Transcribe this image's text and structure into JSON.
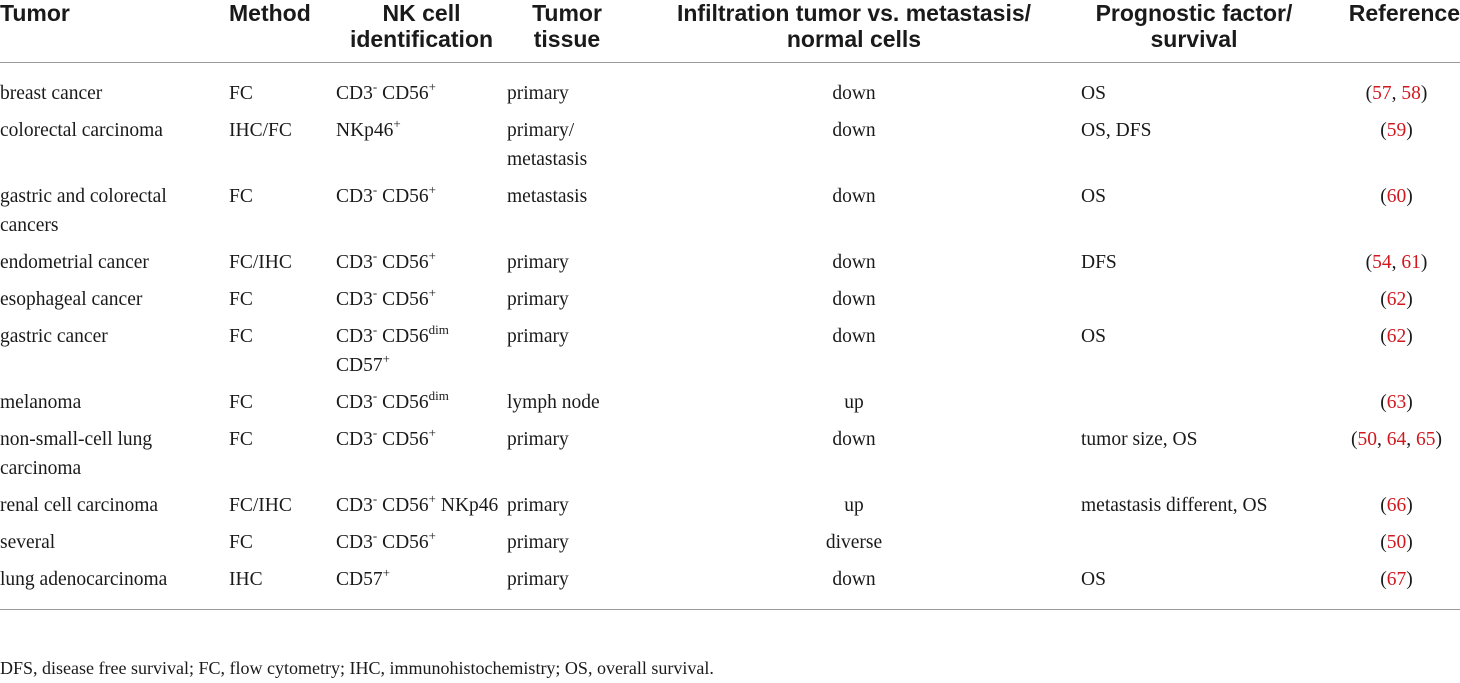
{
  "headers": {
    "tumor": "Tumor",
    "method": "Method",
    "nk_line1": "NK cell",
    "nk_line2": "identification",
    "tissue_line1": "Tumor",
    "tissue_line2": "tissue",
    "infil_line1": "Infiltration tumor vs. metastasis/",
    "infil_line2": "normal cells",
    "prog_line1": "Prognostic factor/",
    "prog_line2": "survival",
    "reference": "Reference"
  },
  "rows": [
    {
      "tumor": "breast cancer",
      "method": "FC",
      "nk": [
        {
          "t": "CD3"
        },
        {
          "s": "-"
        },
        {
          "t": " CD56"
        },
        {
          "s": "+"
        }
      ],
      "tissue": "primary",
      "infil": "down",
      "prog": "OS",
      "refs": [
        "57",
        "58"
      ]
    },
    {
      "tumor": "colorectal carcinoma",
      "method": "IHC/FC",
      "nk": [
        {
          "t": "NKp46"
        },
        {
          "s": "+"
        }
      ],
      "tissue": "primary/ metastasis",
      "infil": "down",
      "prog": "OS, DFS",
      "refs": [
        "59"
      ]
    },
    {
      "tumor": "gastric and colorectal cancers",
      "method": "FC",
      "nk": [
        {
          "t": "CD3"
        },
        {
          "s": "-"
        },
        {
          "t": " CD56"
        },
        {
          "s": "+"
        }
      ],
      "tissue": "metastasis",
      "infil": "down",
      "prog": "OS",
      "refs": [
        "60"
      ]
    },
    {
      "tumor": "endometrial cancer",
      "method": "FC/IHC",
      "nk": [
        {
          "t": "CD3"
        },
        {
          "s": "-"
        },
        {
          "t": " CD56"
        },
        {
          "s": "+"
        }
      ],
      "tissue": "primary",
      "infil": "down",
      "prog": "DFS",
      "refs": [
        "54",
        "61"
      ]
    },
    {
      "tumor": "esophageal cancer",
      "method": "FC",
      "nk": [
        {
          "t": "CD3"
        },
        {
          "s": "-"
        },
        {
          "t": " CD56"
        },
        {
          "s": "+"
        }
      ],
      "tissue": "primary",
      "infil": "down",
      "prog": "",
      "refs": [
        "62"
      ]
    },
    {
      "tumor": "gastric cancer",
      "method": "FC",
      "nk": [
        {
          "t": "CD3"
        },
        {
          "s": "-"
        },
        {
          "t": " CD56"
        },
        {
          "s": "dim"
        },
        {
          "t": " CD57"
        },
        {
          "s": "+"
        }
      ],
      "tissue": "primary",
      "infil": "down",
      "prog": "OS",
      "refs": [
        "62"
      ]
    },
    {
      "tumor": "melanoma",
      "method": "FC",
      "nk": [
        {
          "t": "CD3"
        },
        {
          "s": "-"
        },
        {
          "t": " CD56"
        },
        {
          "s": "dim"
        }
      ],
      "tissue": "lymph node",
      "infil": "up",
      "prog": "",
      "refs": [
        "63"
      ]
    },
    {
      "tumor": "non-small-cell lung carcinoma",
      "method": "FC",
      "nk": [
        {
          "t": "CD3"
        },
        {
          "s": "-"
        },
        {
          "t": " CD56"
        },
        {
          "s": "+"
        }
      ],
      "tissue": "primary",
      "infil": "down",
      "prog": "tumor size, OS",
      "refs": [
        "50",
        "64",
        "65"
      ]
    },
    {
      "tumor": "renal cell carcinoma",
      "method": "FC/IHC",
      "nk": [
        {
          "t": "CD3"
        },
        {
          "s": "-"
        },
        {
          "t": " CD56"
        },
        {
          "s": "+"
        },
        {
          "t": " NKp46"
        }
      ],
      "tissue": "primary",
      "infil": "up",
      "prog": "metastasis different, OS",
      "refs": [
        "66"
      ]
    },
    {
      "tumor": "several",
      "method": "FC",
      "nk": [
        {
          "t": "CD3"
        },
        {
          "s": "-"
        },
        {
          "t": " CD56"
        },
        {
          "s": "+"
        }
      ],
      "tissue": "primary",
      "infil": "diverse",
      "prog": "",
      "refs": [
        "50"
      ]
    },
    {
      "tumor": "lung adenocarcinoma",
      "method": "IHC",
      "nk": [
        {
          "t": "CD57"
        },
        {
          "s": "+"
        }
      ],
      "tissue": "primary",
      "infil": "down",
      "prog": "OS",
      "refs": [
        "67"
      ]
    }
  ],
  "footnote": "DFS, disease free survival; FC, flow cytometry; IHC, immunohistochemistry; OS, overall survival.",
  "colors": {
    "reference_link": "#d0191f",
    "rule": "#999999"
  }
}
